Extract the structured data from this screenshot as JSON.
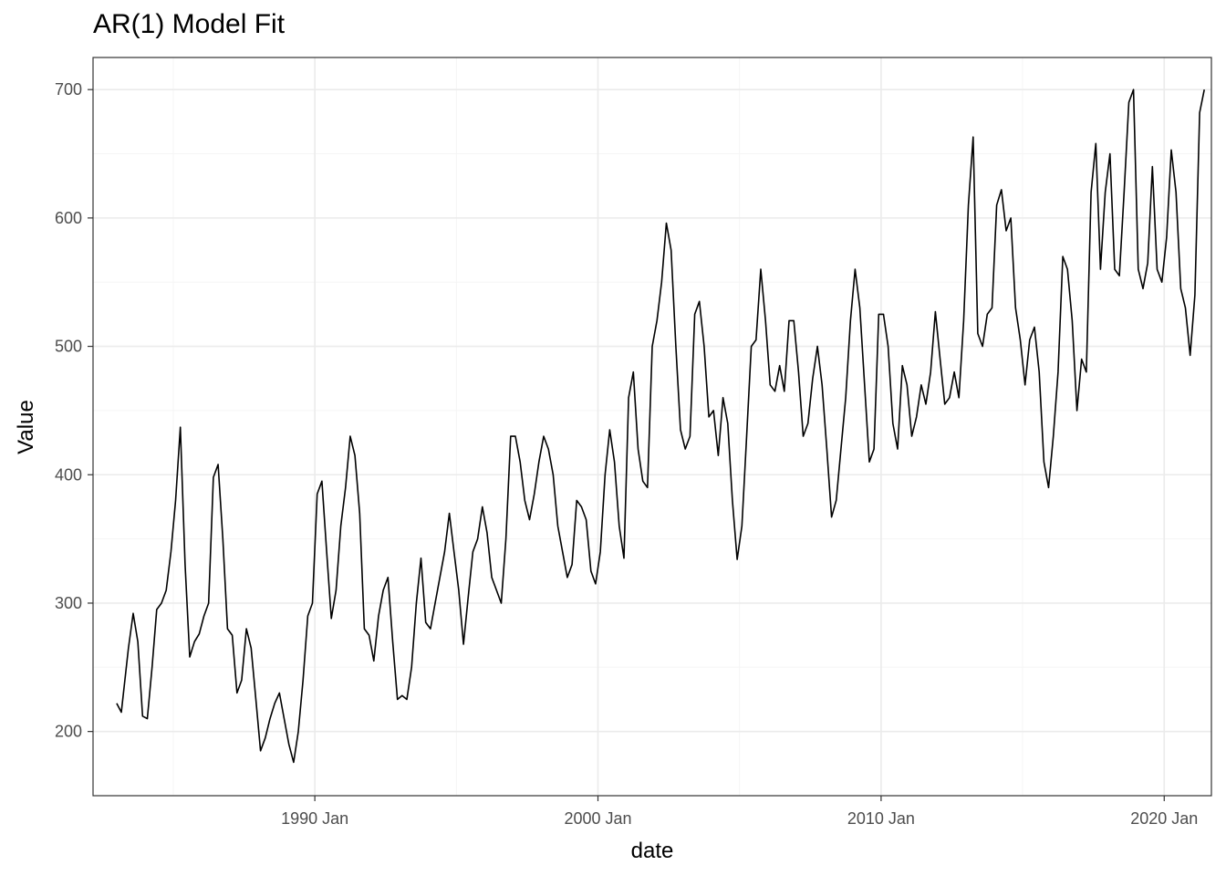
{
  "chart_data": {
    "type": "line",
    "title": "AR(1) Model Fit",
    "xlabel": "date",
    "ylabel": "Value",
    "xlim": [
      "1982-03",
      "2021-09"
    ],
    "ylim": [
      150,
      725
    ],
    "x_ticks": [
      {
        "date": "1990-01",
        "label": "1990 Jan"
      },
      {
        "date": "2000-01",
        "label": "2000 Jan"
      },
      {
        "date": "2010-01",
        "label": "2010 Jan"
      },
      {
        "date": "2020-01",
        "label": "2020 Jan"
      }
    ],
    "y_ticks": [
      200,
      300,
      400,
      500,
      600,
      700
    ],
    "grid": true,
    "legend": "none",
    "series": [
      {
        "color": "#000000",
        "points": [
          [
            "1983-01",
            222
          ],
          [
            "1983-03",
            215
          ],
          [
            "1983-06",
            265
          ],
          [
            "1983-08",
            292
          ],
          [
            "1983-10",
            270
          ],
          [
            "1983-12",
            212
          ],
          [
            "1984-02",
            210
          ],
          [
            "1984-04",
            250
          ],
          [
            "1984-06",
            295
          ],
          [
            "1984-08",
            300
          ],
          [
            "1984-10",
            310
          ],
          [
            "1984-12",
            340
          ],
          [
            "1985-02",
            380
          ],
          [
            "1985-04",
            437
          ],
          [
            "1985-06",
            330
          ],
          [
            "1985-08",
            258
          ],
          [
            "1985-10",
            270
          ],
          [
            "1985-12",
            276
          ],
          [
            "1986-02",
            290
          ],
          [
            "1986-04",
            300
          ],
          [
            "1986-06",
            398
          ],
          [
            "1986-08",
            408
          ],
          [
            "1986-10",
            350
          ],
          [
            "1986-12",
            280
          ],
          [
            "1987-02",
            275
          ],
          [
            "1987-04",
            230
          ],
          [
            "1987-06",
            240
          ],
          [
            "1987-08",
            280
          ],
          [
            "1987-10",
            265
          ],
          [
            "1987-12",
            225
          ],
          [
            "1988-02",
            185
          ],
          [
            "1988-04",
            195
          ],
          [
            "1988-06",
            210
          ],
          [
            "1988-08",
            222
          ],
          [
            "1988-10",
            230
          ],
          [
            "1988-12",
            210
          ],
          [
            "1989-02",
            190
          ],
          [
            "1989-04",
            176
          ],
          [
            "1989-06",
            200
          ],
          [
            "1989-08",
            240
          ],
          [
            "1989-10",
            290
          ],
          [
            "1989-12",
            300
          ],
          [
            "1990-02",
            385
          ],
          [
            "1990-04",
            395
          ],
          [
            "1990-06",
            340
          ],
          [
            "1990-08",
            288
          ],
          [
            "1990-10",
            310
          ],
          [
            "1990-12",
            360
          ],
          [
            "1991-02",
            390
          ],
          [
            "1991-04",
            430
          ],
          [
            "1991-06",
            415
          ],
          [
            "1991-08",
            370
          ],
          [
            "1991-10",
            280
          ],
          [
            "1991-12",
            275
          ],
          [
            "1992-02",
            255
          ],
          [
            "1992-04",
            290
          ],
          [
            "1992-06",
            310
          ],
          [
            "1992-08",
            320
          ],
          [
            "1992-10",
            270
          ],
          [
            "1992-12",
            225
          ],
          [
            "1993-02",
            228
          ],
          [
            "1993-04",
            225
          ],
          [
            "1993-06",
            250
          ],
          [
            "1993-08",
            300
          ],
          [
            "1993-10",
            335
          ],
          [
            "1993-12",
            285
          ],
          [
            "1994-02",
            280
          ],
          [
            "1994-04",
            300
          ],
          [
            "1994-06",
            320
          ],
          [
            "1994-08",
            340
          ],
          [
            "1994-10",
            370
          ],
          [
            "1994-12",
            340
          ],
          [
            "1995-02",
            310
          ],
          [
            "1995-04",
            268
          ],
          [
            "1995-06",
            305
          ],
          [
            "1995-08",
            340
          ],
          [
            "1995-10",
            350
          ],
          [
            "1995-12",
            375
          ],
          [
            "1996-02",
            355
          ],
          [
            "1996-04",
            320
          ],
          [
            "1996-06",
            310
          ],
          [
            "1996-08",
            300
          ],
          [
            "1996-10",
            350
          ],
          [
            "1996-12",
            430
          ],
          [
            "1997-02",
            430
          ],
          [
            "1997-04",
            410
          ],
          [
            "1997-06",
            380
          ],
          [
            "1997-08",
            365
          ],
          [
            "1997-10",
            385
          ],
          [
            "1997-12",
            410
          ],
          [
            "1998-02",
            430
          ],
          [
            "1998-04",
            420
          ],
          [
            "1998-06",
            400
          ],
          [
            "1998-08",
            360
          ],
          [
            "1998-10",
            340
          ],
          [
            "1998-12",
            320
          ],
          [
            "1999-02",
            330
          ],
          [
            "1999-04",
            380
          ],
          [
            "1999-06",
            375
          ],
          [
            "1999-08",
            365
          ],
          [
            "1999-10",
            325
          ],
          [
            "1999-12",
            315
          ],
          [
            "2000-02",
            340
          ],
          [
            "2000-04",
            400
          ],
          [
            "2000-06",
            435
          ],
          [
            "2000-08",
            410
          ],
          [
            "2000-10",
            360
          ],
          [
            "2000-12",
            335
          ],
          [
            "2001-02",
            460
          ],
          [
            "2001-04",
            480
          ],
          [
            "2001-06",
            420
          ],
          [
            "2001-08",
            395
          ],
          [
            "2001-10",
            390
          ],
          [
            "2001-12",
            500
          ],
          [
            "2002-02",
            520
          ],
          [
            "2002-04",
            550
          ],
          [
            "2002-06",
            596
          ],
          [
            "2002-08",
            575
          ],
          [
            "2002-10",
            500
          ],
          [
            "2002-12",
            435
          ],
          [
            "2003-02",
            420
          ],
          [
            "2003-04",
            430
          ],
          [
            "2003-06",
            525
          ],
          [
            "2003-08",
            535
          ],
          [
            "2003-10",
            500
          ],
          [
            "2003-12",
            445
          ],
          [
            "2004-02",
            450
          ],
          [
            "2004-04",
            415
          ],
          [
            "2004-06",
            460
          ],
          [
            "2004-08",
            440
          ],
          [
            "2004-10",
            380
          ],
          [
            "2004-12",
            334
          ],
          [
            "2005-02",
            360
          ],
          [
            "2005-04",
            430
          ],
          [
            "2005-06",
            500
          ],
          [
            "2005-08",
            505
          ],
          [
            "2005-10",
            560
          ],
          [
            "2005-12",
            520
          ],
          [
            "2006-02",
            470
          ],
          [
            "2006-04",
            465
          ],
          [
            "2006-06",
            485
          ],
          [
            "2006-08",
            465
          ],
          [
            "2006-10",
            520
          ],
          [
            "2006-12",
            520
          ],
          [
            "2007-02",
            480
          ],
          [
            "2007-04",
            430
          ],
          [
            "2007-06",
            440
          ],
          [
            "2007-08",
            475
          ],
          [
            "2007-10",
            500
          ],
          [
            "2007-12",
            470
          ],
          [
            "2008-02",
            420
          ],
          [
            "2008-04",
            367
          ],
          [
            "2008-06",
            380
          ],
          [
            "2008-08",
            420
          ],
          [
            "2008-10",
            460
          ],
          [
            "2008-12",
            520
          ],
          [
            "2009-02",
            560
          ],
          [
            "2009-04",
            530
          ],
          [
            "2009-06",
            470
          ],
          [
            "2009-08",
            410
          ],
          [
            "2009-10",
            420
          ],
          [
            "2009-12",
            525
          ],
          [
            "2010-02",
            525
          ],
          [
            "2010-04",
            500
          ],
          [
            "2010-06",
            440
          ],
          [
            "2010-08",
            420
          ],
          [
            "2010-10",
            485
          ],
          [
            "2010-12",
            470
          ],
          [
            "2011-02",
            430
          ],
          [
            "2011-04",
            445
          ],
          [
            "2011-06",
            470
          ],
          [
            "2011-08",
            455
          ],
          [
            "2011-10",
            480
          ],
          [
            "2011-12",
            527
          ],
          [
            "2012-02",
            490
          ],
          [
            "2012-04",
            455
          ],
          [
            "2012-06",
            460
          ],
          [
            "2012-08",
            480
          ],
          [
            "2012-10",
            460
          ],
          [
            "2012-12",
            520
          ],
          [
            "2013-02",
            610
          ],
          [
            "2013-04",
            663
          ],
          [
            "2013-06",
            510
          ],
          [
            "2013-08",
            500
          ],
          [
            "2013-10",
            525
          ],
          [
            "2013-12",
            530
          ],
          [
            "2014-02",
            610
          ],
          [
            "2014-04",
            622
          ],
          [
            "2014-06",
            590
          ],
          [
            "2014-08",
            600
          ],
          [
            "2014-10",
            530
          ],
          [
            "2014-12",
            505
          ],
          [
            "2015-02",
            470
          ],
          [
            "2015-04",
            505
          ],
          [
            "2015-06",
            515
          ],
          [
            "2015-08",
            480
          ],
          [
            "2015-10",
            410
          ],
          [
            "2015-12",
            390
          ],
          [
            "2016-02",
            430
          ],
          [
            "2016-04",
            480
          ],
          [
            "2016-06",
            570
          ],
          [
            "2016-08",
            560
          ],
          [
            "2016-10",
            520
          ],
          [
            "2016-12",
            450
          ],
          [
            "2017-02",
            490
          ],
          [
            "2017-04",
            480
          ],
          [
            "2017-06",
            620
          ],
          [
            "2017-08",
            658
          ],
          [
            "2017-10",
            560
          ],
          [
            "2017-12",
            620
          ],
          [
            "2018-02",
            650
          ],
          [
            "2018-04",
            560
          ],
          [
            "2018-06",
            555
          ],
          [
            "2018-08",
            620
          ],
          [
            "2018-10",
            690
          ],
          [
            "2018-12",
            700
          ],
          [
            "2019-02",
            560
          ],
          [
            "2019-04",
            545
          ],
          [
            "2019-06",
            565
          ],
          [
            "2019-08",
            640
          ],
          [
            "2019-10",
            560
          ],
          [
            "2019-12",
            550
          ],
          [
            "2020-02",
            585
          ],
          [
            "2020-04",
            653
          ],
          [
            "2020-06",
            620
          ],
          [
            "2020-08",
            545
          ],
          [
            "2020-10",
            530
          ],
          [
            "2020-12",
            493
          ],
          [
            "2021-02",
            540
          ],
          [
            "2021-04",
            682
          ],
          [
            "2021-06",
            700
          ]
        ]
      }
    ]
  }
}
